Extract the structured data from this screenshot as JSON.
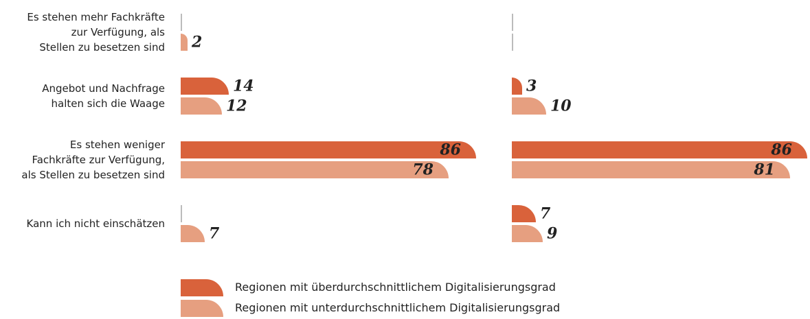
{
  "chart_data": {
    "type": "bar",
    "orientation": "horizontal",
    "categories": [
      "Es stehen mehr Fachkräfte\nzur Verfügung, als\nStellen zu besetzen sind",
      "Angebot und Nachfrage\nhalten sich die Waage",
      "Es stehen weniger\nFachkräfte zur Verfügung,\nals Stellen zu besetzen sind",
      "Kann ich nicht einschätzen"
    ],
    "xlim": [
      0,
      100
    ],
    "series": [
      {
        "name": "Regionen mit überdurchschnittlichem Digitalisierungsgrad",
        "color": "#d9623b",
        "values": [
          [
            null,
            14,
            86,
            null
          ],
          [
            null,
            3,
            86,
            7
          ]
        ]
      },
      {
        "name": "Regionen mit unterdurchschnittlichem Digitalisierungsgrad",
        "color": "#e69f80",
        "values": [
          [
            2,
            12,
            78,
            7
          ],
          [
            null,
            10,
            81,
            9
          ]
        ]
      }
    ]
  }
}
